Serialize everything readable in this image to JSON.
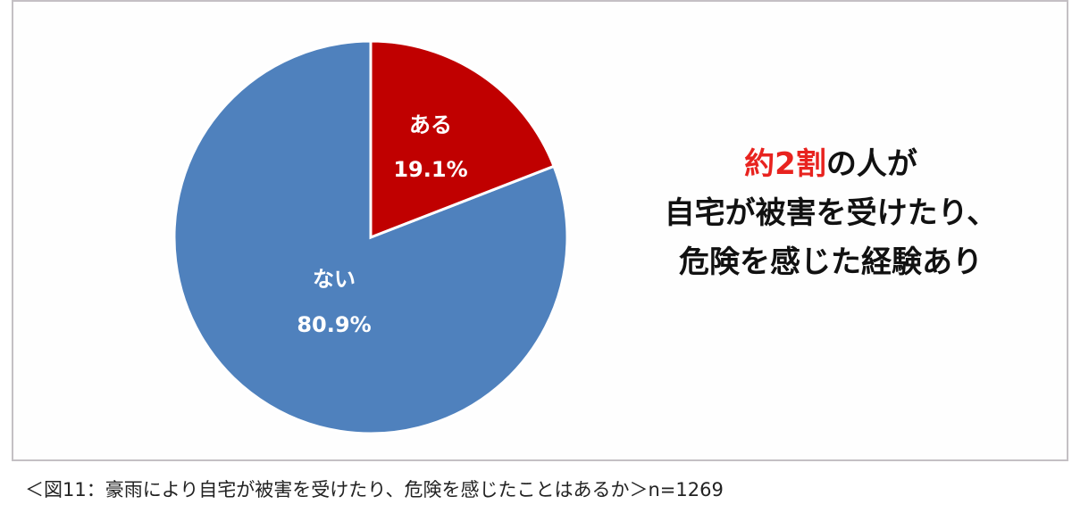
{
  "chart_data": {
    "type": "pie",
    "title": "",
    "slices": [
      {
        "label": "ある",
        "value": 19.1,
        "display": "19.1%",
        "color": "#c00000"
      },
      {
        "label": "ない",
        "value": 80.9,
        "display": "80.9%",
        "color": "#4f81bd"
      }
    ],
    "start_angle_deg": 0,
    "direction": "clockwise",
    "legend": "none",
    "data_labels": "inside",
    "n": 1269
  },
  "headline": {
    "accent": "約2割",
    "line1_rest": "の人が",
    "line2": "自宅が被害を受けたり、",
    "line3": "危険を感じた経験あり",
    "accent_color": "#e8231f"
  },
  "caption": "＜図11：豪雨により自宅が被害を受けたり、危険を感じたことはあるか＞n=1269"
}
